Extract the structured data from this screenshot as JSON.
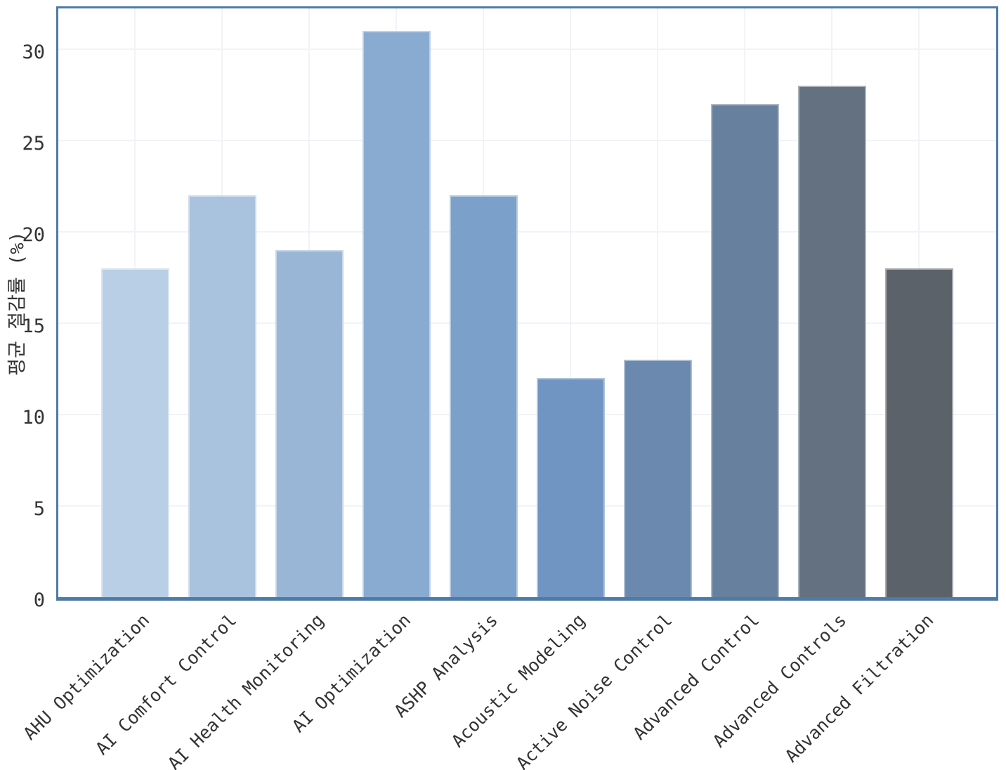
{
  "figure": {
    "background": "#ffffff",
    "spine_color": "#4d7ba6",
    "grid_color": "#f0f3f8",
    "tick_label_color": "#333333"
  },
  "chart_data": {
    "type": "bar",
    "title": "",
    "xlabel": "",
    "ylabel": "평균 절감률 (%)",
    "categories": [
      "AHU Optimization",
      "AI Comfort Control",
      "AI Health Monitoring",
      "AI Optimization",
      "ASHP Analysis",
      "Acoustic Modeling",
      "Active Noise Control",
      "Advanced Control",
      "Advanced Controls",
      "Advanced Filtration"
    ],
    "values": [
      18,
      22,
      19,
      31,
      22,
      12,
      13,
      27,
      28,
      18
    ],
    "bar_colors": [
      "#b9cfe6",
      "#a9c2de",
      "#99b6d7",
      "#8aabd1",
      "#7ba0ca",
      "#7095c2",
      "#6b89ae",
      "#67809d",
      "#647180",
      "#5c6269"
    ],
    "y_ticks": [
      0,
      5,
      10,
      15,
      20,
      25,
      30
    ],
    "ylim": [
      0,
      32.5
    ],
    "grid": true,
    "legend": null,
    "x_tick_rotation": 45
  }
}
